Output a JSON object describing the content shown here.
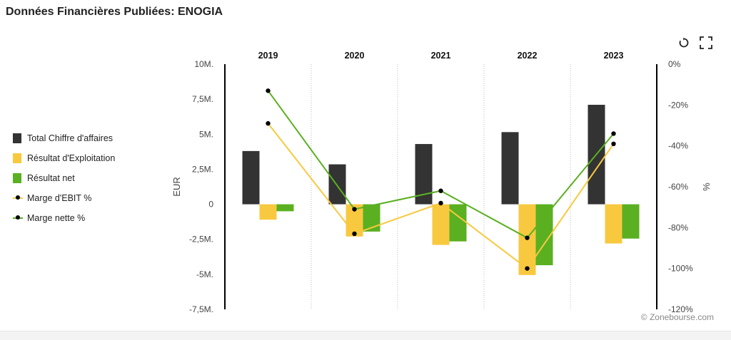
{
  "title": "Données Financières Publiées: ENOGIA",
  "credit": "© Zonebourse.com",
  "toolbar": {
    "reset_icon": "reset-icon",
    "fullscreen_icon": "fullscreen-icon"
  },
  "legend": [
    {
      "label": "Total Chiffre d'affaires",
      "color": "#333333",
      "kind": "bar"
    },
    {
      "label": "Résultat d'Exploitation",
      "color": "#f8c93f",
      "kind": "bar"
    },
    {
      "label": "Résultat net",
      "color": "#5ab021",
      "kind": "bar"
    },
    {
      "label": "Marge d'EBIT %",
      "color": "#f8c93f",
      "kind": "line"
    },
    {
      "label": "Marge nette %",
      "color": "#5ab021",
      "kind": "line"
    }
  ],
  "chart_data": {
    "type": "bar",
    "categories": [
      "2019",
      "2020",
      "2021",
      "2022",
      "2023"
    ],
    "ylabel": "EUR",
    "y2label": "%",
    "ylim": [
      -7500000,
      10000000
    ],
    "y2lim": [
      -120,
      0
    ],
    "yticks": [
      {
        "value": 10000000,
        "label": "10M."
      },
      {
        "value": 7500000,
        "label": "7,5M."
      },
      {
        "value": 5000000,
        "label": "5M."
      },
      {
        "value": 2500000,
        "label": "2,5M."
      },
      {
        "value": 0,
        "label": "0"
      },
      {
        "value": -2500000,
        "label": "-2,5M."
      },
      {
        "value": -5000000,
        "label": "-5M."
      },
      {
        "value": -7500000,
        "label": "-7,5M."
      }
    ],
    "y2ticks": [
      {
        "value": 0,
        "label": "0%"
      },
      {
        "value": -20,
        "label": "-20%"
      },
      {
        "value": -40,
        "label": "-40%"
      },
      {
        "value": -60,
        "label": "-60%"
      },
      {
        "value": -80,
        "label": "-80%"
      },
      {
        "value": -100,
        "label": "-100%"
      },
      {
        "value": -120,
        "label": "-120%"
      }
    ],
    "series": [
      {
        "name": "Total Chiffre d'affaires",
        "type": "bar",
        "axis": "left",
        "color": "#333333",
        "values": [
          3800000,
          2850000,
          4300000,
          5150000,
          7100000
        ]
      },
      {
        "name": "Résultat d'Exploitation",
        "type": "bar",
        "axis": "left",
        "color": "#f8c93f",
        "values": [
          -1100000,
          -2300000,
          -2900000,
          -5050000,
          -2800000
        ]
      },
      {
        "name": "Résultat net",
        "type": "bar",
        "axis": "left",
        "color": "#5ab021",
        "values": [
          -500000,
          -1950000,
          -2650000,
          -4350000,
          -2450000
        ]
      },
      {
        "name": "Marge d'EBIT %",
        "type": "line",
        "axis": "right",
        "color": "#f8c93f",
        "values": [
          -29,
          -83,
          -68,
          -100,
          -39
        ]
      },
      {
        "name": "Marge nette %",
        "type": "line",
        "axis": "right",
        "color": "#5ab021",
        "values": [
          -13,
          -71,
          -62,
          -85,
          -34
        ]
      }
    ],
    "grid": "vertical dotted separators between years",
    "legend_position": "left"
  }
}
